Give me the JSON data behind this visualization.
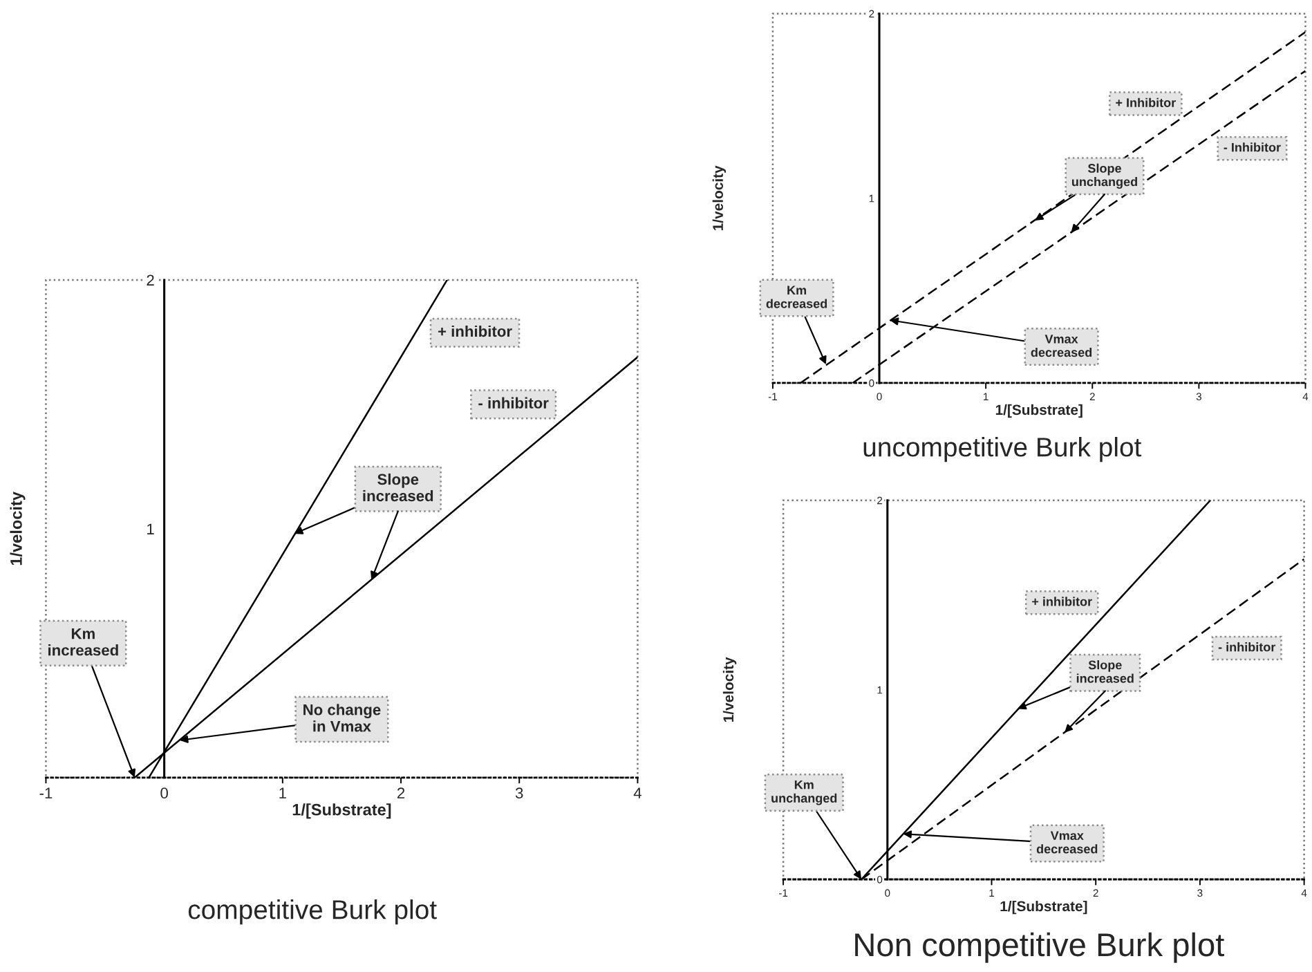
{
  "chart_data": [
    {
      "type": "line",
      "title": "competitive Burk plot",
      "xlabel": "1/[Substrate]",
      "ylabel": "1/velocity",
      "xlim": [
        -1,
        4
      ],
      "ylim": [
        0,
        2
      ],
      "xticks": [
        -1,
        0,
        1,
        2,
        3,
        4
      ],
      "yticks": [
        1,
        2
      ],
      "series": [
        {
          "name": "+ inhibitor",
          "color": "#000000",
          "line_style": "solid",
          "x": [
            -0.13,
            2.39
          ],
          "values": [
            0,
            2
          ]
        },
        {
          "name": "- inhibitor",
          "color": "#000000",
          "line_style": "solid",
          "x": [
            -0.25,
            4
          ],
          "values": [
            0,
            1.69
          ]
        }
      ],
      "annotations": [
        {
          "text": "Slope\nincreased",
          "x": 1.1,
          "y": 0.98
        },
        {
          "text": "Km\nincreased",
          "x": -0.25,
          "y": 0
        },
        {
          "text": "No change\nin Vmax",
          "x": 0.13,
          "y": 0.15
        }
      ]
    },
    {
      "type": "line",
      "title": "uncompetitive Burk plot",
      "xlabel": "1/[Substrate]",
      "ylabel": "1/velocity",
      "xlim": [
        -1,
        4
      ],
      "ylim": [
        0,
        2
      ],
      "xticks": [
        -1,
        0,
        1,
        2,
        3,
        4
      ],
      "yticks": [
        0,
        1,
        2
      ],
      "series": [
        {
          "name": "+ Inhibitor",
          "color": "#000000",
          "line_style": "dashed",
          "x": [
            -0.74,
            4
          ],
          "values": [
            0,
            1.9
          ]
        },
        {
          "name": "- Inhibitor",
          "color": "#000000",
          "line_style": "dashed",
          "x": [
            -0.25,
            4
          ],
          "values": [
            0,
            1.69
          ]
        }
      ],
      "annotations": [
        {
          "text": "Slope\nunchanged",
          "x": 1.46,
          "y": 0.88
        },
        {
          "text": "Km\ndecreased",
          "x": -0.5,
          "y": 0.1
        },
        {
          "text": "Vmax\ndecreased",
          "x": 0.1,
          "y": 0.34
        }
      ]
    },
    {
      "type": "line",
      "title": "Non competitive Burk plot",
      "xlabel": "1/[Substrate]",
      "ylabel": "1/velocity",
      "xlim": [
        -1,
        4
      ],
      "ylim": [
        0,
        2
      ],
      "xticks": [
        -1,
        0,
        1,
        2,
        3,
        4
      ],
      "yticks": [
        0,
        1,
        2
      ],
      "series": [
        {
          "name": "+ inhibitor",
          "color": "#000000",
          "line_style": "solid",
          "x": [
            -0.25,
            3.1
          ],
          "values": [
            0,
            2
          ]
        },
        {
          "name": "- inhibitor",
          "color": "#000000",
          "line_style": "dashed",
          "x": [
            -0.25,
            4
          ],
          "values": [
            0,
            1.69
          ]
        }
      ],
      "annotations": [
        {
          "text": "Slope\nincreased",
          "x": 1.25,
          "y": 0.9
        },
        {
          "text": "Km\nunchanged",
          "x": -0.25,
          "y": 0
        },
        {
          "text": "Vmax\ndecreased",
          "x": 0.15,
          "y": 0.24
        }
      ]
    }
  ]
}
